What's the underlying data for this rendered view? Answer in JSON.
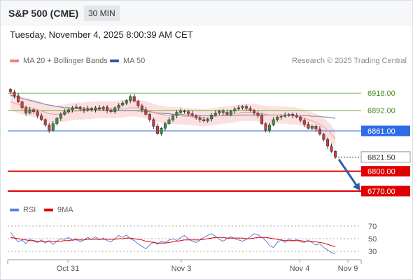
{
  "header": {
    "title": "S&P 500 (CME)",
    "interval": "30 MIN"
  },
  "timestamp": "Tuesday, November 4, 2025 8:00:39 AM CET",
  "legend": {
    "ma20": "MA 20 + Bollinger Bands",
    "ma20_color": "#f08080",
    "ma50": "MA 50",
    "ma50_color": "#2c5a9c"
  },
  "credit": "Research © 2025 Trading Central",
  "rsi_legend": {
    "rsi": "RSI",
    "rsi_color": "#5b7fd6",
    "ma9": "9MA",
    "ma9_color": "#e00000"
  },
  "chart_data": [
    {
      "type": "candlestick",
      "x_ticks": [
        "Oct 31",
        "Nov 3",
        "Nov 4",
        "Nov 9"
      ],
      "ylim": [
        6760,
        6935
      ],
      "levels": [
        {
          "label": "6918.00",
          "value": 6918.0,
          "style": "resistance",
          "color": "#7ab648"
        },
        {
          "label": "6892.00",
          "value": 6892.0,
          "style": "resistance",
          "color": "#7ab648"
        },
        {
          "label": "6861.00",
          "value": 6861.0,
          "style": "pivot",
          "color": "#2e6be6"
        },
        {
          "label": "6821.50",
          "value": 6821.5,
          "style": "last",
          "color": "#333333"
        },
        {
          "label": "6800.00",
          "value": 6800.0,
          "style": "support",
          "color": "#e00000"
        },
        {
          "label": "6770.00",
          "value": 6770.0,
          "style": "support",
          "color": "#e00000"
        }
      ],
      "close_path": [
        6920,
        6914,
        6905,
        6896,
        6888,
        6893,
        6890,
        6884,
        6878,
        6870,
        6862,
        6872,
        6880,
        6886,
        6890,
        6893,
        6896,
        6897,
        6894,
        6892,
        6895,
        6893,
        6896,
        6894,
        6897,
        6892,
        6890,
        6896,
        6900,
        6903,
        6907,
        6913,
        6906,
        6899,
        6893,
        6886,
        6878,
        6868,
        6857,
        6865,
        6872,
        6878,
        6884,
        6889,
        6891,
        6890,
        6887,
        6884,
        6881,
        6878,
        6876,
        6879,
        6885,
        6888,
        6891,
        6889,
        6886,
        6891,
        6894,
        6896,
        6898,
        6895,
        6892,
        6888,
        6884,
        6872,
        6862,
        6870,
        6878,
        6882,
        6883,
        6885,
        6886,
        6884,
        6882,
        6877,
        6871,
        6865,
        6868,
        6864,
        6856,
        6848,
        6838,
        6830,
        6821.5
      ],
      "ma20": [
        6905,
        6903,
        6901,
        6899,
        6897,
        6896,
        6895,
        6893,
        6891,
        6889,
        6887,
        6886,
        6886,
        6887,
        6888,
        6889,
        6890,
        6891,
        6891,
        6891,
        6892,
        6892,
        6893,
        6893,
        6893,
        6893,
        6893,
        6893,
        6894,
        6894,
        6895,
        6896,
        6896,
        6895,
        6894,
        6893,
        6891,
        6889,
        6887,
        6886,
        6885,
        6884,
        6884,
        6884,
        6884,
        6883,
        6883,
        6882,
        6882,
        6881,
        6881,
        6881,
        6882,
        6883,
        6884,
        6885,
        6885,
        6886,
        6887,
        6888,
        6889,
        6889,
        6889,
        6889,
        6888,
        6887,
        6886,
        6885,
        6885,
        6885,
        6885,
        6885,
        6884,
        6884,
        6883,
        6882,
        6880,
        6878,
        6876,
        6874,
        6871,
        6867,
        6862,
        6856,
        6849
      ],
      "ma50": [
        6915,
        6913,
        6912,
        6910,
        6909,
        6907,
        6906,
        6904,
        6903,
        6901,
        6900,
        6899,
        6898,
        6897,
        6896,
        6896,
        6895,
        6895,
        6894,
        6894,
        6894,
        6893,
        6893,
        6893,
        6892,
        6892,
        6892,
        6892,
        6892,
        6892,
        6892,
        6892,
        6892,
        6891,
        6891,
        6890,
        6890,
        6889,
        6888,
        6888,
        6887,
        6887,
        6886,
        6886,
        6886,
        6885,
        6885,
        6885,
        6884,
        6884,
        6884,
        6884,
        6884,
        6884,
        6884,
        6884,
        6884,
        6884,
        6884,
        6885,
        6885,
        6885,
        6885,
        6885,
        6885,
        6885,
        6885,
        6885,
        6885,
        6885,
        6885,
        6885,
        6885,
        6885,
        6884,
        6884,
        6884,
        6884,
        6883,
        6883,
        6883,
        6882,
        6882,
        6881,
        6880
      ]
    },
    {
      "type": "line",
      "name": "RSI",
      "y_ticks": [
        70,
        50,
        30
      ],
      "ylim": [
        20,
        80
      ],
      "rsi": [
        60,
        52,
        45,
        48,
        42,
        50,
        46,
        44,
        48,
        43,
        47,
        41,
        46,
        50,
        49,
        52,
        47,
        50,
        45,
        48,
        52,
        49,
        53,
        48,
        51,
        47,
        45,
        50,
        55,
        52,
        56,
        50,
        47,
        42,
        38,
        34,
        40,
        45,
        41,
        46,
        44,
        48,
        50,
        47,
        52,
        55,
        50,
        46,
        44,
        48,
        52,
        55,
        58,
        54,
        49,
        46,
        50,
        53,
        50,
        48,
        46,
        49,
        53,
        58,
        56,
        52,
        47,
        39,
        36,
        44,
        48,
        44,
        50,
        46,
        49,
        45,
        44,
        48,
        44,
        40,
        42,
        36,
        32,
        28,
        26
      ],
      "ma9": [
        52,
        51,
        50,
        49,
        48,
        47,
        47,
        46,
        46,
        46,
        46,
        46,
        46,
        46,
        47,
        47,
        48,
        48,
        48,
        48,
        49,
        49,
        49,
        49,
        49,
        49,
        49,
        49,
        50,
        50,
        51,
        51,
        50,
        49,
        48,
        46,
        45,
        44,
        43,
        43,
        43,
        44,
        45,
        46,
        47,
        48,
        48,
        48,
        48,
        48,
        49,
        50,
        51,
        52,
        52,
        52,
        51,
        51,
        51,
        51,
        51,
        50,
        50,
        51,
        52,
        52,
        52,
        51,
        50,
        49,
        48,
        47,
        47,
        47,
        47,
        47,
        46,
        46,
        46,
        45,
        44,
        43,
        41,
        39,
        37
      ]
    }
  ]
}
